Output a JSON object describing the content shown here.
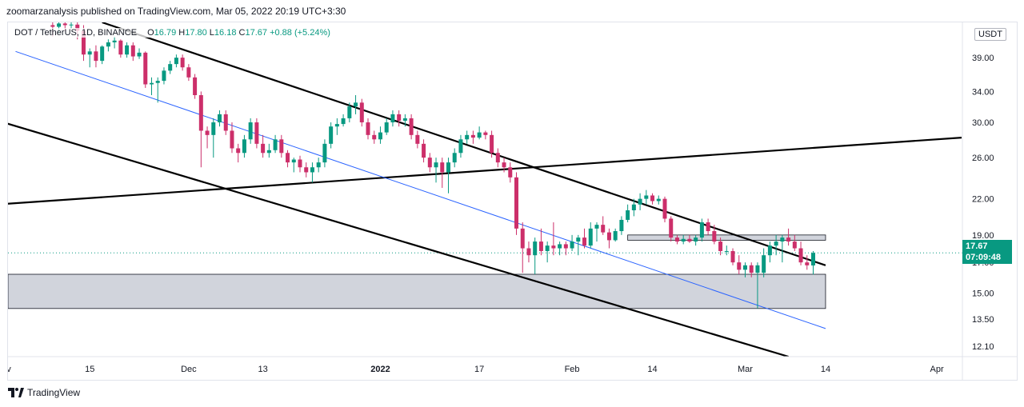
{
  "header": {
    "publisher_text": "zoomarzanalysis published on TradingView.com, Mar 05, 2022 20:19 UTC+3:30"
  },
  "legend": {
    "symbol": "DOT / TetherUS, 1D, BINANCE",
    "open_label": "O",
    "open": "16.79",
    "high_label": "H",
    "high": "17.80",
    "low_label": "L",
    "low": "16.18",
    "close_label": "C",
    "close": "17.67",
    "change": "+0.88 (+5.24%)"
  },
  "currency": "USDT",
  "last_price": {
    "price": "17.67",
    "countdown": "07:09:48"
  },
  "footer": {
    "brand": "TradingView",
    "logo_icon": "tradingview-logo-icon"
  },
  "colors": {
    "up": "#089981",
    "down": "#cc2f6a",
    "blue_line": "#2962ff",
    "zone": "#d1d4dc"
  },
  "chart_data": {
    "type": "candlestick",
    "symbol": "DOT / TetherUS",
    "interval": "1D",
    "exchange": "BINANCE",
    "y_scale": "log",
    "ylim": [
      11.6,
      45
    ],
    "y_ticks": [
      12.1,
      13.5,
      15.0,
      17.0,
      19.0,
      22.0,
      26.0,
      30.0,
      34.0,
      39.0
    ],
    "y_tick_labels": [
      "12.10",
      "13.50",
      "15.00",
      "17.00",
      "19.00",
      "22.00",
      "26.00",
      "30.00",
      "34.00",
      "39.00"
    ],
    "x_range": [
      "2021-11-01",
      "2022-04-05"
    ],
    "x_ticks": [
      {
        "date": "2021-11-01",
        "label": "Nov"
      },
      {
        "date": "2021-11-15",
        "label": "15"
      },
      {
        "date": "2021-12-01",
        "label": "Dec"
      },
      {
        "date": "2021-12-13",
        "label": "13"
      },
      {
        "date": "2022-01-01",
        "label": "2022"
      },
      {
        "date": "2022-01-17",
        "label": "17"
      },
      {
        "date": "2022-02-01",
        "label": "Feb"
      },
      {
        "date": "2022-02-14",
        "label": "14"
      },
      {
        "date": "2022-03-01",
        "label": "Mar"
      },
      {
        "date": "2022-03-14",
        "label": "14"
      },
      {
        "date": "2022-04-01",
        "label": "Apr"
      }
    ],
    "start_date": "2021-11-09",
    "candles": [
      {
        "o": 44.5,
        "h": 45,
        "l": 42.5,
        "c": 44.2
      },
      {
        "o": 44.2,
        "h": 45,
        "l": 43.0,
        "c": 44.8
      },
      {
        "o": 44.8,
        "h": 45,
        "l": 43.5,
        "c": 44.5
      },
      {
        "o": 44.5,
        "h": 45,
        "l": 43.8,
        "c": 44.6
      },
      {
        "o": 44.6,
        "h": 45,
        "l": 42.0,
        "c": 43.5
      },
      {
        "o": 43.5,
        "h": 44.5,
        "l": 38.5,
        "c": 39.5
      },
      {
        "o": 39.5,
        "h": 40.5,
        "l": 37.5,
        "c": 40.0
      },
      {
        "o": 40.0,
        "h": 41.0,
        "l": 37.5,
        "c": 38.5
      },
      {
        "o": 38.5,
        "h": 41.0,
        "l": 38.0,
        "c": 40.8
      },
      {
        "o": 40.8,
        "h": 42.0,
        "l": 40.0,
        "c": 41.5
      },
      {
        "o": 41.5,
        "h": 42.5,
        "l": 40.5,
        "c": 41.8
      },
      {
        "o": 41.8,
        "h": 42.0,
        "l": 39.0,
        "c": 39.5
      },
      {
        "o": 39.5,
        "h": 41.5,
        "l": 39.0,
        "c": 41.0
      },
      {
        "o": 41.0,
        "h": 41.5,
        "l": 38.5,
        "c": 39.2
      },
      {
        "o": 39.2,
        "h": 40.5,
        "l": 38.8,
        "c": 39.8
      },
      {
        "o": 39.8,
        "h": 40.0,
        "l": 34.5,
        "c": 35.0
      },
      {
        "o": 35.0,
        "h": 36.0,
        "l": 33.5,
        "c": 35.2
      },
      {
        "o": 35.2,
        "h": 36.0,
        "l": 32.5,
        "c": 35.5
      },
      {
        "o": 35.5,
        "h": 37.5,
        "l": 35.0,
        "c": 37.0
      },
      {
        "o": 37.0,
        "h": 38.5,
        "l": 36.5,
        "c": 38.0
      },
      {
        "o": 38.0,
        "h": 39.5,
        "l": 37.5,
        "c": 39.0
      },
      {
        "o": 39.0,
        "h": 39.5,
        "l": 37.0,
        "c": 37.5
      },
      {
        "o": 37.5,
        "h": 38.0,
        "l": 35.5,
        "c": 36.0
      },
      {
        "o": 36.0,
        "h": 36.5,
        "l": 33.0,
        "c": 33.5
      },
      {
        "o": 33.5,
        "h": 34.0,
        "l": 25.0,
        "c": 29.0
      },
      {
        "o": 29.0,
        "h": 29.5,
        "l": 27.0,
        "c": 28.5
      },
      {
        "o": 28.5,
        "h": 30.5,
        "l": 26.0,
        "c": 30.0
      },
      {
        "o": 30.0,
        "h": 31.5,
        "l": 29.5,
        "c": 31.0
      },
      {
        "o": 31.0,
        "h": 31.5,
        "l": 28.5,
        "c": 29.0
      },
      {
        "o": 29.0,
        "h": 30.0,
        "l": 26.5,
        "c": 27.0
      },
      {
        "o": 27.0,
        "h": 27.5,
        "l": 25.5,
        "c": 26.5
      },
      {
        "o": 26.5,
        "h": 28.5,
        "l": 26.0,
        "c": 28.0
      },
      {
        "o": 28.0,
        "h": 30.5,
        "l": 27.5,
        "c": 30.0
      },
      {
        "o": 30.0,
        "h": 30.5,
        "l": 27.0,
        "c": 27.5
      },
      {
        "o": 27.5,
        "h": 28.5,
        "l": 26.0,
        "c": 26.5
      },
      {
        "o": 26.5,
        "h": 27.5,
        "l": 26.0,
        "c": 26.8
      },
      {
        "o": 26.8,
        "h": 28.5,
        "l": 26.5,
        "c": 28.0
      },
      {
        "o": 28.0,
        "h": 28.5,
        "l": 26.0,
        "c": 26.5
      },
      {
        "o": 26.5,
        "h": 26.8,
        "l": 25.0,
        "c": 25.5
      },
      {
        "o": 25.5,
        "h": 26.0,
        "l": 24.5,
        "c": 25.8
      },
      {
        "o": 25.8,
        "h": 26.2,
        "l": 24.5,
        "c": 25.0
      },
      {
        "o": 25.0,
        "h": 25.5,
        "l": 24.0,
        "c": 24.5
      },
      {
        "o": 24.5,
        "h": 25.5,
        "l": 23.5,
        "c": 25.0
      },
      {
        "o": 25.0,
        "h": 26.0,
        "l": 24.5,
        "c": 25.5
      },
      {
        "o": 25.5,
        "h": 28.0,
        "l": 25.0,
        "c": 27.5
      },
      {
        "o": 27.5,
        "h": 30.0,
        "l": 27.0,
        "c": 29.5
      },
      {
        "o": 29.5,
        "h": 30.5,
        "l": 28.5,
        "c": 29.8
      },
      {
        "o": 29.8,
        "h": 31.0,
        "l": 29.5,
        "c": 30.5
      },
      {
        "o": 30.5,
        "h": 32.5,
        "l": 30.0,
        "c": 32.0
      },
      {
        "o": 32.0,
        "h": 33.5,
        "l": 31.0,
        "c": 32.5
      },
      {
        "o": 32.5,
        "h": 33.0,
        "l": 29.5,
        "c": 30.0
      },
      {
        "o": 30.0,
        "h": 30.5,
        "l": 28.0,
        "c": 28.5
      },
      {
        "o": 28.5,
        "h": 29.0,
        "l": 27.5,
        "c": 28.0
      },
      {
        "o": 28.0,
        "h": 29.5,
        "l": 27.5,
        "c": 28.8
      },
      {
        "o": 28.8,
        "h": 30.5,
        "l": 28.5,
        "c": 30.0
      },
      {
        "o": 30.0,
        "h": 31.5,
        "l": 29.5,
        "c": 31.0
      },
      {
        "o": 31.0,
        "h": 31.5,
        "l": 29.5,
        "c": 30.2
      },
      {
        "o": 30.2,
        "h": 31.0,
        "l": 29.5,
        "c": 30.5
      },
      {
        "o": 30.5,
        "h": 31.0,
        "l": 28.0,
        "c": 28.5
      },
      {
        "o": 28.5,
        "h": 29.0,
        "l": 27.0,
        "c": 27.5
      },
      {
        "o": 27.5,
        "h": 28.0,
        "l": 25.5,
        "c": 26.0
      },
      {
        "o": 26.0,
        "h": 26.5,
        "l": 24.5,
        "c": 25.0
      },
      {
        "o": 25.0,
        "h": 26.0,
        "l": 23.5,
        "c": 25.5
      },
      {
        "o": 25.5,
        "h": 26.0,
        "l": 23.0,
        "c": 24.5
      },
      {
        "o": 24.5,
        "h": 26.0,
        "l": 22.5,
        "c": 25.5
      },
      {
        "o": 25.5,
        "h": 27.0,
        "l": 25.0,
        "c": 26.5
      },
      {
        "o": 26.5,
        "h": 28.5,
        "l": 26.0,
        "c": 28.0
      },
      {
        "o": 28.0,
        "h": 29.0,
        "l": 27.5,
        "c": 28.5
      },
      {
        "o": 28.5,
        "h": 29.0,
        "l": 27.5,
        "c": 28.2
      },
      {
        "o": 28.2,
        "h": 29.5,
        "l": 28.0,
        "c": 28.8
      },
      {
        "o": 28.8,
        "h": 29.0,
        "l": 28.0,
        "c": 28.5
      },
      {
        "o": 28.5,
        "h": 29.0,
        "l": 26.0,
        "c": 26.5
      },
      {
        "o": 26.5,
        "h": 27.0,
        "l": 25.0,
        "c": 25.5
      },
      {
        "o": 25.5,
        "h": 26.0,
        "l": 24.5,
        "c": 25.0
      },
      {
        "o": 25.0,
        "h": 25.5,
        "l": 23.5,
        "c": 24.0
      },
      {
        "o": 24.0,
        "h": 24.5,
        "l": 19.0,
        "c": 19.5
      },
      {
        "o": 19.5,
        "h": 20.0,
        "l": 16.3,
        "c": 18.0
      },
      {
        "o": 18.0,
        "h": 18.5,
        "l": 17.0,
        "c": 17.5
      },
      {
        "o": 17.5,
        "h": 18.8,
        "l": 16.2,
        "c": 18.5
      },
      {
        "o": 18.5,
        "h": 19.5,
        "l": 17.5,
        "c": 17.8
      },
      {
        "o": 17.8,
        "h": 18.5,
        "l": 17.0,
        "c": 18.2
      },
      {
        "o": 18.2,
        "h": 20.0,
        "l": 17.5,
        "c": 18.0
      },
      {
        "o": 18.0,
        "h": 18.5,
        "l": 17.5,
        "c": 18.3
      },
      {
        "o": 18.3,
        "h": 18.5,
        "l": 17.5,
        "c": 18.0
      },
      {
        "o": 18.0,
        "h": 19.0,
        "l": 17.8,
        "c": 18.5
      },
      {
        "o": 18.5,
        "h": 19.0,
        "l": 17.5,
        "c": 18.8
      },
      {
        "o": 18.8,
        "h": 19.5,
        "l": 18.0,
        "c": 18.2
      },
      {
        "o": 18.2,
        "h": 20.0,
        "l": 18.0,
        "c": 19.5
      },
      {
        "o": 19.5,
        "h": 20.0,
        "l": 18.5,
        "c": 19.8
      },
      {
        "o": 19.8,
        "h": 20.5,
        "l": 19.0,
        "c": 19.2
      },
      {
        "o": 19.2,
        "h": 19.5,
        "l": 18.0,
        "c": 18.6
      },
      {
        "o": 18.6,
        "h": 19.5,
        "l": 18.5,
        "c": 19.3
      },
      {
        "o": 19.3,
        "h": 20.5,
        "l": 19.0,
        "c": 20.2
      },
      {
        "o": 20.2,
        "h": 21.5,
        "l": 20.0,
        "c": 21.0
      },
      {
        "o": 21.0,
        "h": 22.0,
        "l": 20.5,
        "c": 21.5
      },
      {
        "o": 21.5,
        "h": 22.5,
        "l": 21.0,
        "c": 22.0
      },
      {
        "o": 22.0,
        "h": 22.8,
        "l": 21.5,
        "c": 22.3
      },
      {
        "o": 22.3,
        "h": 22.5,
        "l": 21.5,
        "c": 21.8
      },
      {
        "o": 21.8,
        "h": 22.3,
        "l": 21.5,
        "c": 22.0
      },
      {
        "o": 22.0,
        "h": 22.2,
        "l": 20.0,
        "c": 20.3
      },
      {
        "o": 20.3,
        "h": 20.5,
        "l": 18.5,
        "c": 18.8
      },
      {
        "o": 18.8,
        "h": 19.0,
        "l": 18.3,
        "c": 18.5
      },
      {
        "o": 18.5,
        "h": 19.0,
        "l": 18.3,
        "c": 18.7
      },
      {
        "o": 18.7,
        "h": 19.0,
        "l": 18.4,
        "c": 18.5
      },
      {
        "o": 18.5,
        "h": 19.0,
        "l": 18.2,
        "c": 18.8
      },
      {
        "o": 18.8,
        "h": 20.3,
        "l": 18.5,
        "c": 20.0
      },
      {
        "o": 20.0,
        "h": 20.3,
        "l": 19.0,
        "c": 19.3
      },
      {
        "o": 19.3,
        "h": 19.8,
        "l": 18.3,
        "c": 18.5
      },
      {
        "o": 18.5,
        "h": 18.8,
        "l": 17.5,
        "c": 17.8
      },
      {
        "o": 17.8,
        "h": 18.2,
        "l": 17.5,
        "c": 17.8
      },
      {
        "o": 17.8,
        "h": 18.0,
        "l": 16.8,
        "c": 17.0
      },
      {
        "o": 17.0,
        "h": 17.5,
        "l": 16.2,
        "c": 16.5
      },
      {
        "o": 16.5,
        "h": 17.0,
        "l": 16.0,
        "c": 16.8
      },
      {
        "o": 16.8,
        "h": 17.0,
        "l": 16.0,
        "c": 16.3
      },
      {
        "o": 16.3,
        "h": 17.0,
        "l": 14.1,
        "c": 16.8
      },
      {
        "o": 16.3,
        "h": 18.0,
        "l": 16.0,
        "c": 17.5
      },
      {
        "o": 17.5,
        "h": 18.5,
        "l": 17.0,
        "c": 18.2
      },
      {
        "o": 18.2,
        "h": 19.0,
        "l": 17.5,
        "c": 18.5
      },
      {
        "o": 18.5,
        "h": 19.0,
        "l": 17.0,
        "c": 18.8
      },
      {
        "o": 18.8,
        "h": 19.5,
        "l": 18.2,
        "c": 18.5
      },
      {
        "o": 18.5,
        "h": 19.0,
        "l": 17.8,
        "c": 18.0
      },
      {
        "o": 18.0,
        "h": 18.5,
        "l": 16.8,
        "c": 17.0
      },
      {
        "o": 17.0,
        "h": 17.5,
        "l": 16.5,
        "c": 16.8
      },
      {
        "o": 16.79,
        "h": 17.8,
        "l": 16.18,
        "c": 17.67
      }
    ],
    "trendlines": [
      {
        "name": "channel-upper",
        "color": "#000000",
        "from": [
          "2021-11-17",
          45.0
        ],
        "to": [
          "2022-03-14",
          16.8
        ]
      },
      {
        "name": "channel-lower",
        "color": "#000000",
        "from": [
          "2021-11-01",
          30.0
        ],
        "to": [
          "2022-03-08",
          11.6
        ]
      },
      {
        "name": "rising-line",
        "color": "#000000",
        "from": [
          "2021-10-31",
          21.5
        ],
        "to": [
          "2022-04-05",
          28.2
        ]
      },
      {
        "name": "mid-line",
        "color": "#2962ff",
        "from": [
          "2021-11-03",
          40.0
        ],
        "to": [
          "2022-03-14",
          13.0
        ]
      }
    ],
    "zones": [
      {
        "name": "support-zone",
        "low": 14.1,
        "high": 16.2,
        "from": "2021-11-01",
        "to": "2022-03-14"
      },
      {
        "name": "resistance-zone",
        "low": 18.6,
        "high": 19.0,
        "from": "2022-02-10",
        "to": "2022-03-14"
      }
    ],
    "last_price_line": 17.67,
    "grid": false
  }
}
